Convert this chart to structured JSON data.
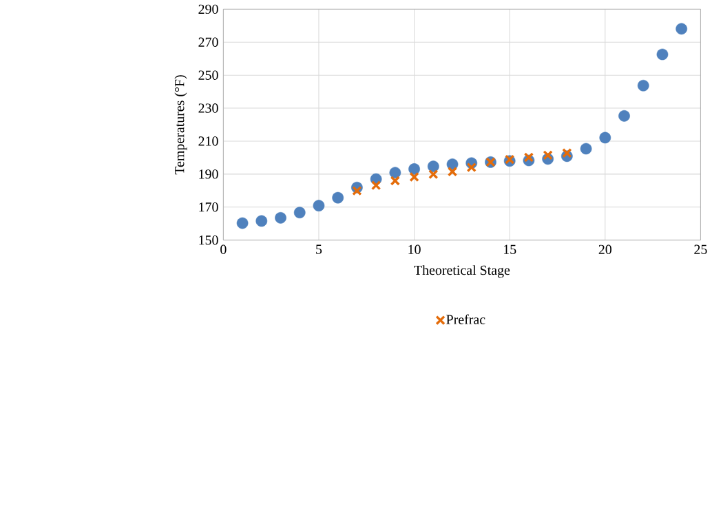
{
  "chart_data": {
    "type": "scatter",
    "xlabel": "Theoretical Stage",
    "ylabel": "Temperatures (°F)",
    "xlim": [
      0,
      25
    ],
    "ylim": [
      150,
      290
    ],
    "xticks": [
      0,
      5,
      10,
      15,
      20,
      25
    ],
    "yticks": [
      150,
      170,
      190,
      210,
      230,
      250,
      270,
      290
    ],
    "grid": true,
    "legend": "bottom",
    "series": [
      {
        "color": "#4f81bd",
        "marker": "circle",
        "x": [
          1,
          2,
          3,
          4,
          5,
          6,
          7,
          8,
          9,
          10,
          11,
          12,
          13,
          14,
          15,
          16,
          17,
          18,
          19,
          20,
          21,
          22,
          23,
          24
        ],
        "values": [
          160.3,
          161.6,
          163.5,
          166.7,
          170.9,
          175.7,
          181.9,
          187,
          190.9,
          193.1,
          194.7,
          196,
          196.7,
          197.3,
          198,
          198.3,
          199.2,
          200.9,
          205.4,
          212.1,
          225.3,
          243.7,
          262.6,
          278.1
        ]
      },
      {
        "name": "Prefrac",
        "color": "#e46c0a",
        "marker": "cross",
        "x": [
          7,
          8,
          9,
          10,
          11,
          12,
          13,
          14,
          15,
          16,
          17,
          18
        ],
        "values": [
          179.9,
          183.2,
          186,
          188.3,
          189.9,
          191.5,
          194.1,
          197.3,
          198.9,
          200.2,
          201.5,
          202.8
        ]
      }
    ]
  }
}
